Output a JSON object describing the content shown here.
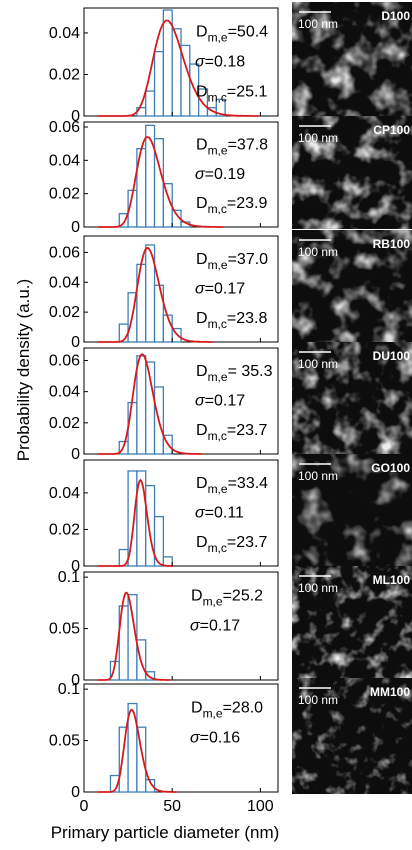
{
  "chart_data": {
    "type": "bar",
    "xlabel": "Primary particle diameter (nm)",
    "ylabel": "Probability density (a.u.)",
    "xlim": [
      0,
      110
    ],
    "xticks": [
      "0",
      "50",
      "100"
    ],
    "bar_width": 5,
    "scale_bar_label": "100 nm",
    "colors": {
      "bars": "#3f7fb5",
      "fit": "#d7191c",
      "image_bg": "#0d0d0d"
    },
    "panels": [
      {
        "sample": "D100",
        "ylim": [
          0,
          0.052
        ],
        "yticks": [
          "0",
          "0.02",
          "0.04"
        ],
        "bins": [
          32.5,
          37.5,
          42.5,
          47.5,
          52.5,
          57.5,
          62.5,
          67.5,
          72.5,
          77.5
        ],
        "values": [
          0.004,
          0.012,
          0.031,
          0.051,
          0.042,
          0.034,
          0.025,
          0.013,
          0.004,
          0.008
        ],
        "fit": {
          "peak_x": 47,
          "peak_y": 0.046,
          "sigma": 0.18
        },
        "annotations": [
          "D",
          "m,e",
          "=50.4",
          "σ",
          "=0.18",
          "D",
          "m,c",
          "=25.1"
        ]
      },
      {
        "sample": "CP100",
        "ylim": [
          0,
          0.063
        ],
        "yticks": [
          "0",
          "0.02",
          "0.04",
          "0.06"
        ],
        "bins": [
          22.5,
          27.5,
          32.5,
          37.5,
          42.5,
          47.5,
          52.5,
          57.5
        ],
        "values": [
          0.008,
          0.022,
          0.047,
          0.061,
          0.053,
          0.026,
          0.01,
          0.003
        ],
        "fit": {
          "peak_x": 36,
          "peak_y": 0.054,
          "sigma": 0.19
        },
        "annotations": [
          "D",
          "m,e",
          "=37.8",
          "σ",
          "=0.19",
          "D",
          "m,c",
          "=23.9"
        ]
      },
      {
        "sample": "RB100",
        "ylim": [
          0,
          0.071
        ],
        "yticks": [
          "0",
          "0.02",
          "0.04",
          "0.06"
        ],
        "bins": [
          22.5,
          27.5,
          32.5,
          37.5,
          42.5,
          47.5,
          52.5
        ],
        "values": [
          0.012,
          0.033,
          0.052,
          0.065,
          0.038,
          0.018,
          0.009
        ],
        "fit": {
          "peak_x": 36,
          "peak_y": 0.063,
          "sigma": 0.17
        },
        "annotations": [
          "D",
          "m,e",
          "=37.0",
          "σ",
          "=0.17",
          "D",
          "m,c",
          "=23.8"
        ]
      },
      {
        "sample": "DU100",
        "ylim": [
          0,
          0.068
        ],
        "yticks": [
          "0",
          "0.02",
          "0.04",
          "0.06"
        ],
        "bins": [
          22.5,
          27.5,
          32.5,
          37.5,
          42.5,
          47.5
        ],
        "values": [
          0.008,
          0.033,
          0.063,
          0.059,
          0.043,
          0.012
        ],
        "fit": {
          "peak_x": 33,
          "peak_y": 0.064,
          "sigma": 0.17
        },
        "annotations": [
          "D",
          "m,e",
          "= 35.3",
          "σ",
          "=0.17",
          "D",
          "m,c",
          "=23.7"
        ]
      },
      {
        "sample": "GO100",
        "ylim": [
          0,
          0.058
        ],
        "yticks": [
          "0",
          "0.02",
          "0.04"
        ],
        "bins": [
          22.5,
          27.5,
          32.5,
          37.5,
          42.5,
          47.5
        ],
        "values": [
          0.009,
          0.052,
          0.052,
          0.044,
          0.027,
          0.005
        ],
        "fit": {
          "peak_x": 32,
          "peak_y": 0.047,
          "sigma": 0.11
        },
        "annotations": [
          "D",
          "m,e",
          "=33.4",
          "σ",
          "=0.11",
          "D",
          "m,c",
          "=23.7"
        ]
      },
      {
        "sample": "ML100",
        "ylim": [
          0,
          0.105
        ],
        "yticks": [
          "0",
          "0.05",
          "0.1"
        ],
        "bins": [
          17.5,
          22.5,
          27.5,
          32.5,
          37.5
        ],
        "values": [
          0.018,
          0.072,
          0.083,
          0.039,
          0.008
        ],
        "fit": {
          "peak_x": 24,
          "peak_y": 0.085,
          "sigma": 0.17
        },
        "annotations": [
          "D",
          "m,e",
          "=25.2",
          "σ",
          "=0.17"
        ]
      },
      {
        "sample": "MM100",
        "ylim": [
          0,
          0.105
        ],
        "yticks": [
          "0",
          "0.05",
          "0.1"
        ],
        "bins": [
          17.5,
          22.5,
          27.5,
          32.5,
          37.5
        ],
        "values": [
          0.016,
          0.063,
          0.086,
          0.063,
          0.012
        ],
        "fit": {
          "peak_x": 27,
          "peak_y": 0.08,
          "sigma": 0.16
        },
        "annotations": [
          "D",
          "m,e",
          "=28.0",
          "σ",
          "=0.16"
        ]
      }
    ]
  }
}
